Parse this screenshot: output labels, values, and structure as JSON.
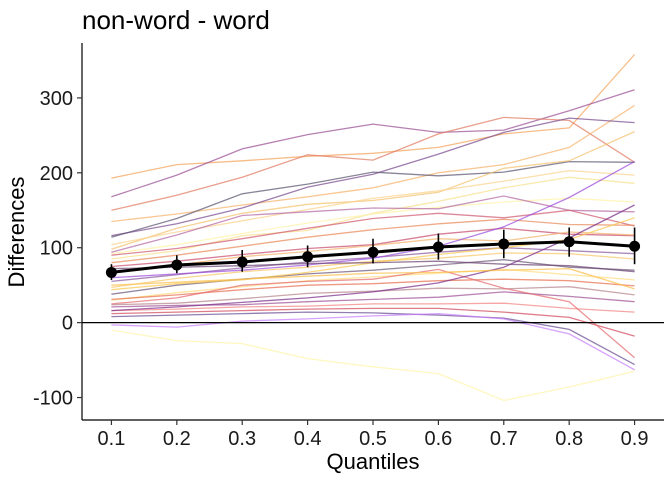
{
  "chart_data": {
    "type": "line",
    "title": "non-word - word",
    "xlabel": "Quantiles",
    "ylabel": "Differences",
    "x": [
      0.1,
      0.2,
      0.3,
      0.4,
      0.5,
      0.6,
      0.7,
      0.8,
      0.9
    ],
    "x_tick_labels": [
      "0.1",
      "0.2",
      "0.3",
      "0.4",
      "0.5",
      "0.6",
      "0.7",
      "0.8",
      "0.9"
    ],
    "xlim": [
      0.055,
      0.945
    ],
    "ylim": [
      -130,
      380
    ],
    "y_ticks": [
      -100,
      0,
      100,
      200,
      300
    ],
    "y_tick_labels": [
      "-100",
      "0",
      "100",
      "200",
      "300"
    ],
    "reference_line_y": 0,
    "grid": false,
    "group_mean": {
      "values": [
        67,
        77,
        81,
        88,
        94,
        101,
        105,
        108,
        102
      ],
      "ci_low": [
        57,
        66,
        68,
        74,
        79,
        84,
        86,
        88,
        78
      ],
      "ci_high": [
        78,
        90,
        97,
        103,
        112,
        119,
        124,
        127,
        127
      ],
      "color": "#000000"
    },
    "participant_series": [
      {
        "values": [
          193,
          211,
          216,
          222,
          226,
          234,
          252,
          260,
          358
        ],
        "color": "#f4a259"
      },
      {
        "values": [
          168,
          197,
          232,
          251,
          265,
          254,
          257,
          283,
          311
        ],
        "color": "#9b4f96"
      },
      {
        "values": [
          150,
          170,
          194,
          224,
          217,
          252,
          274,
          270,
          214
        ],
        "color": "#e07a5f"
      },
      {
        "values": [
          135,
          145,
          157,
          168,
          180,
          200,
          211,
          234,
          290
        ],
        "color": "#f6b26b"
      },
      {
        "values": [
          116,
          132,
          153,
          181,
          198,
          225,
          254,
          273,
          267
        ],
        "color": "#7a4a8f"
      },
      {
        "values": [
          114,
          139,
          172,
          185,
          201,
          196,
          201,
          215,
          214
        ],
        "color": "#5c5470"
      },
      {
        "values": [
          98,
          126,
          146,
          158,
          163,
          174,
          206,
          216,
          255
        ],
        "color": "#f4c06c"
      },
      {
        "values": [
          104,
          121,
          136,
          151,
          166,
          176,
          189,
          203,
          197
        ],
        "color": "#fbd38d"
      },
      {
        "values": [
          85,
          96,
          116,
          123,
          146,
          162,
          180,
          194,
          186
        ],
        "color": "#f8e08e"
      },
      {
        "values": [
          92,
          104,
          119,
          133,
          145,
          154,
          161,
          166,
          161
        ],
        "color": "#fff3a6"
      },
      {
        "values": [
          94,
          117,
          143,
          148,
          153,
          152,
          169,
          150,
          148
        ],
        "color": "#b46aa5"
      },
      {
        "values": [
          90,
          99,
          112,
          126,
          139,
          146,
          140,
          150,
          129
        ],
        "color": "#d05c72"
      },
      {
        "values": [
          80,
          90,
          102,
          114,
          124,
          132,
          138,
          131,
          130
        ],
        "color": "#e98b5a"
      },
      {
        "values": [
          75,
          82,
          91,
          99,
          104,
          118,
          126,
          118,
          116
        ],
        "color": "#c94c6e"
      },
      {
        "values": [
          66,
          77,
          88,
          95,
          103,
          112,
          109,
          121,
          117
        ],
        "color": "#f2b36b"
      },
      {
        "values": [
          55,
          64,
          73,
          81,
          87,
          94,
          100,
          96,
          92
        ],
        "color": "#8a5a9e"
      },
      {
        "values": [
          47,
          59,
          68,
          74,
          82,
          86,
          93,
          92,
          85
        ],
        "color": "#f7c86a"
      },
      {
        "values": [
          38,
          50,
          58,
          65,
          70,
          77,
          84,
          74,
          70
        ],
        "color": "#6d597a"
      },
      {
        "values": [
          30,
          40,
          48,
          56,
          61,
          66,
          71,
          64,
          57
        ],
        "color": "#ffdd80"
      },
      {
        "values": [
          31,
          37,
          44,
          50,
          52,
          56,
          58,
          56,
          49
        ],
        "color": "#e76f51"
      },
      {
        "values": [
          24,
          26,
          32,
          39,
          42,
          46,
          45,
          48,
          37
        ],
        "color": "#b5838d"
      },
      {
        "values": [
          21,
          23,
          24,
          28,
          31,
          34,
          41,
          35,
          28
        ],
        "color": "#a05195"
      },
      {
        "values": [
          16,
          18,
          21,
          22,
          25,
          25,
          26,
          19,
          14
        ],
        "color": "#f28482"
      },
      {
        "values": [
          12,
          14,
          16,
          18,
          19,
          19,
          14,
          7,
          -18
        ],
        "color": "#d1495b"
      },
      {
        "values": [
          8,
          10,
          12,
          14,
          13,
          10,
          6,
          -9,
          -56
        ],
        "color": "#6a4c93"
      },
      {
        "values": [
          -3,
          -6,
          2,
          5,
          9,
          12,
          5,
          -15,
          -63
        ],
        "color": "#c77dff"
      },
      {
        "values": [
          -10,
          -24,
          -28,
          -48,
          -59,
          -68,
          -104,
          -86,
          -65
        ],
        "color": "#fff4a8"
      },
      {
        "values": [
          25,
          33,
          50,
          55,
          58,
          71,
          46,
          28,
          -47
        ],
        "color": "#e56b6f"
      },
      {
        "values": [
          60,
          65,
          70,
          77,
          86,
          102,
          128,
          167,
          215
        ],
        "color": "#9d4edd"
      },
      {
        "values": [
          44,
          52,
          57,
          67,
          80,
          91,
          100,
          111,
          140
        ],
        "color": "#f9c74f"
      },
      {
        "values": [
          16,
          21,
          27,
          33,
          41,
          53,
          74,
          113,
          157
        ],
        "color": "#7b2d8b"
      },
      {
        "values": [
          50,
          54,
          58,
          62,
          66,
          67,
          70,
          72,
          45
        ],
        "color": "#fcbf49"
      },
      {
        "values": [
          72,
          74,
          76,
          79,
          80,
          82,
          78,
          76,
          68
        ],
        "color": "#6c4675"
      }
    ]
  }
}
